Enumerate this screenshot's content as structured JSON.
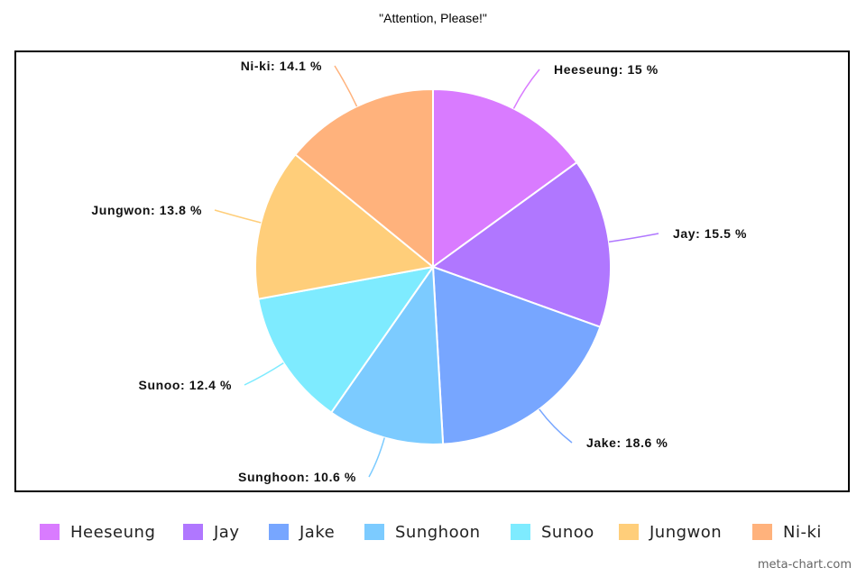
{
  "chart_data": {
    "type": "pie",
    "title": "\"Attention, Please!\"",
    "slices": [
      {
        "name": "Heeseung",
        "value": 15,
        "label": "Heeseung: 15 %",
        "color": "#d97bff"
      },
      {
        "name": "Jay",
        "value": 15.5,
        "label": "Jay: 15.5 %",
        "color": "#b077ff"
      },
      {
        "name": "Jake",
        "value": 18.6,
        "label": "Jake: 18.6 %",
        "color": "#77a6ff"
      },
      {
        "name": "Sunghoon",
        "value": 10.6,
        "label": "Sunghoon: 10.6 %",
        "color": "#7ccbff"
      },
      {
        "name": "Sunoo",
        "value": 12.4,
        "label": "Sunoo: 12.4 %",
        "color": "#7eebff"
      },
      {
        "name": "Jungwon",
        "value": 13.8,
        "label": "Jungwon: 13.8 %",
        "color": "#ffce7a"
      },
      {
        "name": "Ni-ki",
        "value": 14.1,
        "label": "Ni-ki: 14.1 %",
        "color": "#ffb27c"
      }
    ],
    "legend": {
      "placement": "bottom",
      "entries": [
        "Heeseung",
        "Jay",
        "Jake",
        "Sunghoon",
        "Sunoo",
        "Jungwon",
        "Ni-ki"
      ]
    }
  },
  "watermark": "meta-chart.com"
}
